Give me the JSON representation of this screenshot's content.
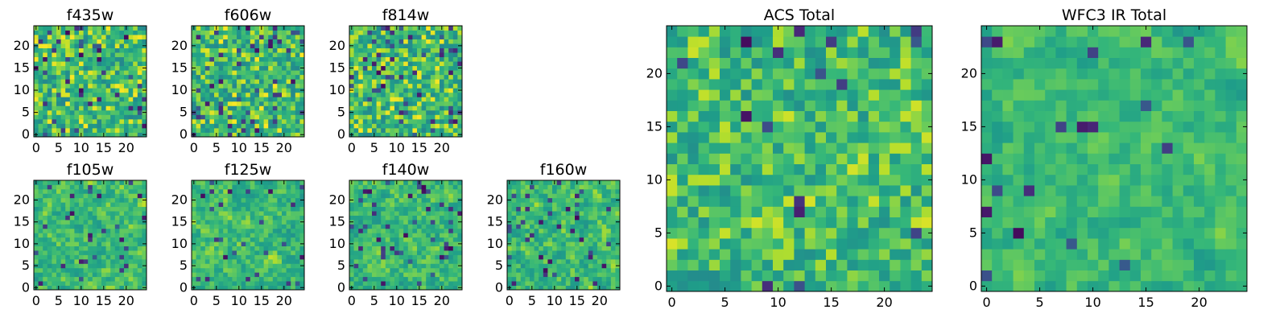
{
  "colors": {
    "colormap": "viridis",
    "low": "#440154",
    "mid": "#21918c",
    "high": "#fde725",
    "frame": "#000000",
    "background": "#ffffff"
  },
  "chart_data": [
    {
      "type": "heatmap",
      "title": "f435w",
      "grid_size": 25,
      "xlim": [
        0,
        24
      ],
      "ylim": [
        0,
        24
      ],
      "xticks": [
        "0",
        "5",
        "10",
        "15",
        "20"
      ],
      "yticks": [
        "0",
        "5",
        "10",
        "15",
        "20"
      ],
      "origin": "lower",
      "colormap": "viridis",
      "seed": 11,
      "smoothness": 0.0,
      "dark_fraction": 0.07
    },
    {
      "type": "heatmap",
      "title": "f606w",
      "grid_size": 25,
      "xlim": [
        0,
        24
      ],
      "ylim": [
        0,
        24
      ],
      "xticks": [
        "0",
        "5",
        "10",
        "15",
        "20"
      ],
      "yticks": [
        "0",
        "5",
        "10",
        "15",
        "20"
      ],
      "origin": "lower",
      "colormap": "viridis",
      "seed": 23,
      "smoothness": 0.0,
      "dark_fraction": 0.07
    },
    {
      "type": "heatmap",
      "title": "f814w",
      "grid_size": 25,
      "xlim": [
        0,
        24
      ],
      "ylim": [
        0,
        24
      ],
      "xticks": [
        "0",
        "5",
        "10",
        "15",
        "20"
      ],
      "yticks": [
        "0",
        "5",
        "10",
        "15",
        "20"
      ],
      "origin": "lower",
      "colormap": "viridis",
      "seed": 37,
      "smoothness": 0.0,
      "dark_fraction": 0.08
    },
    {
      "type": "heatmap",
      "title": "f105w",
      "grid_size": 25,
      "xlim": [
        0,
        24
      ],
      "ylim": [
        0,
        24
      ],
      "xticks": [
        "0",
        "5",
        "10",
        "15",
        "20"
      ],
      "yticks": [
        "0",
        "5",
        "10",
        "15",
        "20"
      ],
      "origin": "lower",
      "colormap": "viridis",
      "seed": 41,
      "smoothness": 0.45,
      "dark_fraction": 0.05
    },
    {
      "type": "heatmap",
      "title": "f125w",
      "grid_size": 25,
      "xlim": [
        0,
        24
      ],
      "ylim": [
        0,
        24
      ],
      "xticks": [
        "0",
        "5",
        "10",
        "15",
        "20"
      ],
      "yticks": [
        "0",
        "5",
        "10",
        "15",
        "20"
      ],
      "origin": "lower",
      "colormap": "viridis",
      "seed": 53,
      "smoothness": 0.45,
      "dark_fraction": 0.05
    },
    {
      "type": "heatmap",
      "title": "f140w",
      "grid_size": 25,
      "xlim": [
        0,
        24
      ],
      "ylim": [
        0,
        24
      ],
      "xticks": [
        "0",
        "5",
        "10",
        "15",
        "20"
      ],
      "yticks": [
        "0",
        "5",
        "10",
        "15",
        "20"
      ],
      "origin": "lower",
      "colormap": "viridis",
      "seed": 67,
      "smoothness": 0.45,
      "dark_fraction": 0.05
    },
    {
      "type": "heatmap",
      "title": "f160w",
      "grid_size": 25,
      "xlim": [
        0,
        24
      ],
      "ylim": [
        0,
        24
      ],
      "xticks": [
        "0",
        "5",
        "10",
        "15",
        "20"
      ],
      "yticks": [
        "0",
        "5",
        "10",
        "15",
        "20"
      ],
      "origin": "lower",
      "colormap": "viridis",
      "seed": 79,
      "smoothness": 0.4,
      "dark_fraction": 0.07
    },
    {
      "type": "heatmap",
      "title": "ACS Total",
      "grid_size": 25,
      "xlim": [
        0,
        24
      ],
      "ylim": [
        0,
        24
      ],
      "xticks": [
        "0",
        "5",
        "10",
        "15",
        "20"
      ],
      "yticks": [
        "0",
        "5",
        "10",
        "15",
        "20"
      ],
      "origin": "lower",
      "colormap": "viridis",
      "seed": 97,
      "smoothness": 0.2,
      "dark_fraction": 0.03
    },
    {
      "type": "heatmap",
      "title": "WFC3 IR Total",
      "grid_size": 25,
      "xlim": [
        0,
        24
      ],
      "ylim": [
        0,
        24
      ],
      "xticks": [
        "0",
        "5",
        "10",
        "15",
        "20"
      ],
      "yticks": [
        "0",
        "5",
        "10",
        "15",
        "20"
      ],
      "origin": "lower",
      "colormap": "viridis",
      "seed": 113,
      "smoothness": 0.6,
      "dark_fraction": 0.04
    }
  ]
}
